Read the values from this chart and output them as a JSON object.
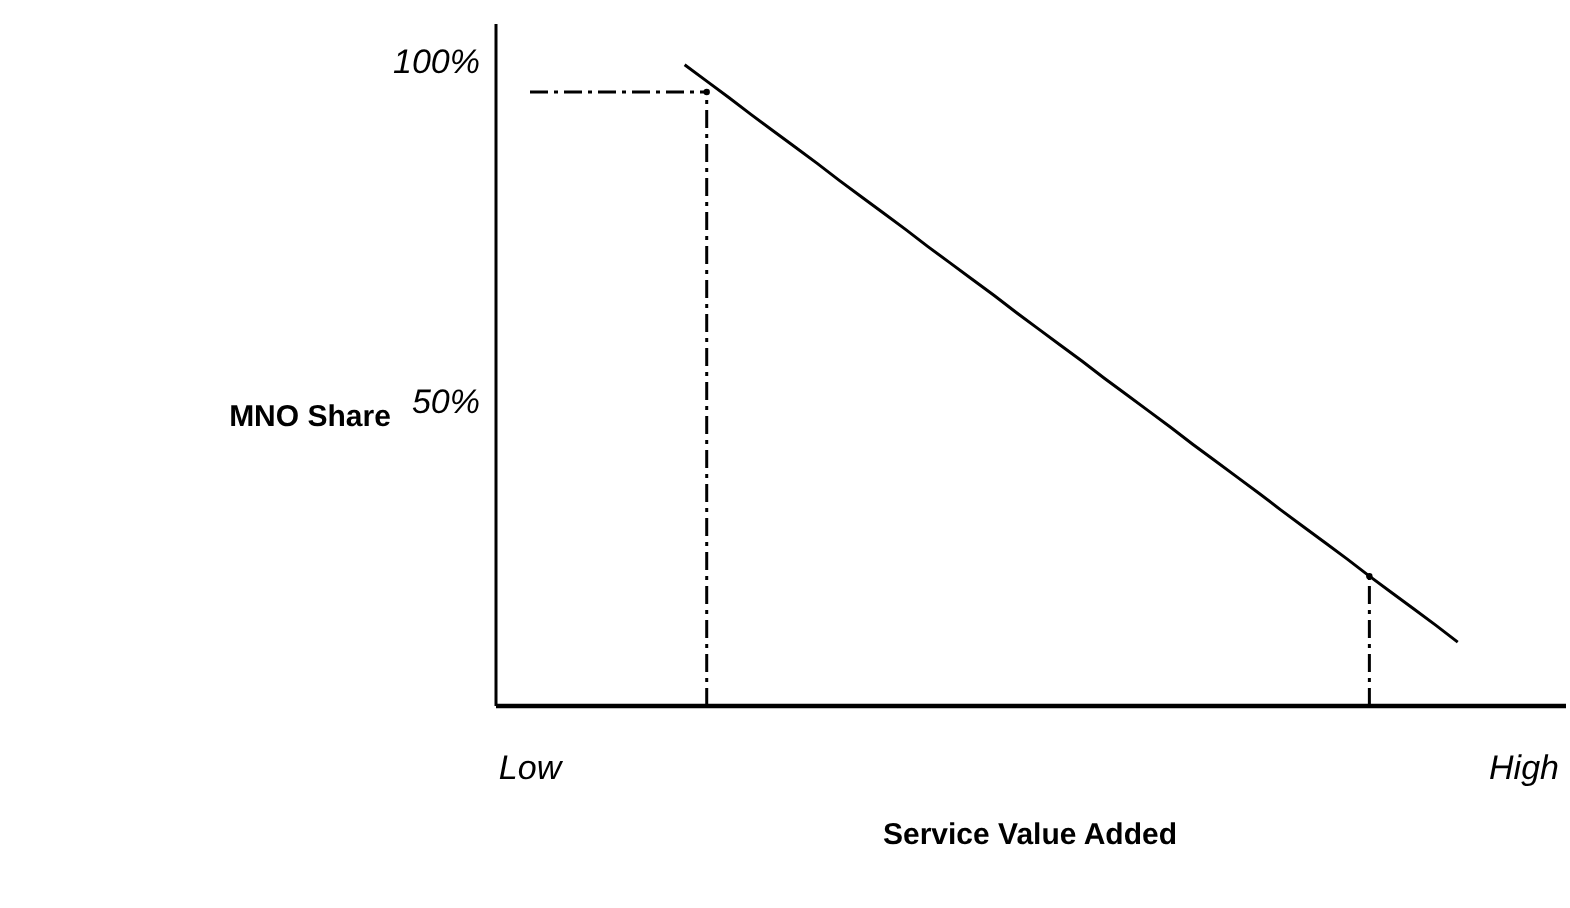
{
  "chart_data": {
    "type": "line",
    "xlabel": "Service Value Added",
    "ylabel": "MNO Share",
    "categories": [
      "Low",
      null,
      null,
      null,
      null,
      null,
      null,
      null,
      null,
      null,
      null,
      null,
      null,
      null,
      null,
      null,
      null,
      null,
      null,
      null,
      null,
      null,
      null,
      null,
      null,
      null,
      null,
      null,
      null,
      null,
      null,
      null,
      null,
      null,
      null,
      null,
      null,
      null,
      null,
      null,
      null,
      null,
      null,
      null,
      null,
      "High"
    ],
    "ylim": [
      5.6,
      105.9
    ],
    "yticks": [
      {
        "value": 50,
        "label": "50%"
      },
      {
        "value": 100,
        "label": "100%"
      }
    ],
    "grid": false,
    "marker": "none",
    "series": [
      {
        "color": "#000000",
        "line_style": "solid",
        "values": [
          null,
          null,
          null,
          null,
          null,
          null,
          null,
          99.9,
          97.5,
          95.1,
          92.6,
          90.2,
          87.8,
          85.4,
          82.9,
          80.5,
          78.1,
          75.7,
          73.2,
          70.8,
          68.4,
          66.0,
          63.5,
          61.1,
          58.7,
          56.3,
          53.8,
          51.4,
          49.0,
          46.6,
          44.1,
          41.7,
          39.3,
          36.9,
          34.4,
          32.0,
          29.6,
          27.2,
          24.7,
          22.3,
          19.9,
          17.5,
          15.0,
          null,
          null,
          null
        ]
      },
      {
        "color": "#000000",
        "line_style": "dashed",
        "values": [
          95.9,
          95.9,
          95.9,
          95.9,
          95.9,
          95.9,
          95.9,
          95.9,
          95.9,
          null,
          null,
          null,
          null,
          null,
          null,
          null,
          null,
          null,
          null,
          null,
          null,
          null,
          null,
          null,
          null,
          null,
          null,
          null,
          null,
          null,
          null,
          null,
          null,
          null,
          null,
          null,
          null,
          null,
          null,
          null,
          null,
          null,
          null,
          null,
          null,
          null
        ]
      },
      {
        "type": "lollipop",
        "color": "#000000",
        "line_style": "dashed",
        "marker": "circle",
        "values": [
          null,
          null,
          null,
          null,
          null,
          null,
          null,
          null,
          95.9,
          null,
          null,
          null,
          null,
          null,
          null,
          null,
          null,
          null,
          null,
          null,
          null,
          null,
          null,
          null,
          null,
          null,
          null,
          null,
          null,
          null,
          null,
          null,
          null,
          null,
          null,
          null,
          null,
          null,
          24.7,
          null,
          null,
          null,
          null,
          null,
          null,
          null
        ]
      }
    ]
  }
}
